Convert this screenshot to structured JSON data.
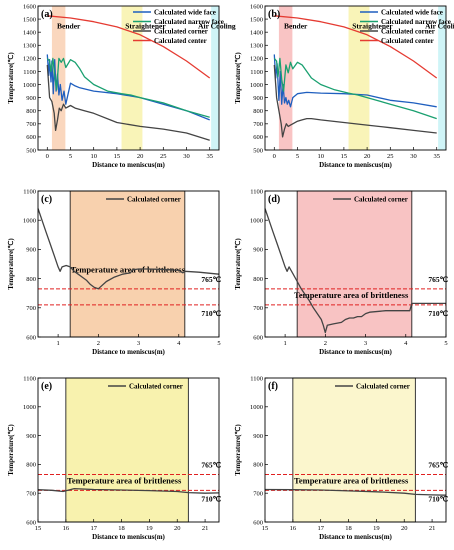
{
  "chart_data": [
    {
      "type": "line",
      "panel": "(a)",
      "xlabel": "Distance to meniscus(m)",
      "ylabel": "Temperature(℃)",
      "xlim": [
        -2,
        37
      ],
      "ylim": [
        500,
        1600
      ],
      "xticks": [
        0,
        5,
        10,
        15,
        20,
        25,
        30,
        35
      ],
      "yticks": [
        500,
        600,
        700,
        800,
        900,
        1000,
        1100,
        1200,
        1300,
        1400,
        1500,
        1600
      ],
      "regions": [
        {
          "label": "Bender",
          "x0": 1.0,
          "x1": 3.9,
          "color": "#f8c9a8",
          "labelx": 2.1,
          "labely": 1430
        },
        {
          "label": "Straightener",
          "x0": 16.0,
          "x1": 20.5,
          "color": "#f7f0a0",
          "labelx": 16.8,
          "labely": 1430
        },
        {
          "label": "Air Cooling",
          "x0": 35.3,
          "x1": 37.0,
          "color": "#bff0f4",
          "labelx": 32.5,
          "labely": 1430
        }
      ],
      "series": [
        {
          "name": "Calculated wide face",
          "color": "#1f5fbf",
          "x": [
            0,
            0.3,
            0.5,
            0.8,
            1,
            1.3,
            1.6,
            1.9,
            2.2,
            2.5,
            2.8,
            3.2,
            3.6,
            4,
            5,
            6,
            7,
            10,
            15,
            20,
            25,
            30,
            35
          ],
          "y": [
            1230,
            1070,
            1190,
            1020,
            1180,
            930,
            1190,
            950,
            1080,
            920,
            1000,
            880,
            950,
            850,
            1010,
            990,
            975,
            950,
            930,
            900,
            850,
            800,
            730
          ]
        },
        {
          "name": "Calculated narrow face",
          "color": "#1aa070",
          "x": [
            0,
            0.5,
            0.8,
            1.2,
            1.6,
            2,
            2.5,
            3,
            3.5,
            4,
            5,
            6,
            7,
            8,
            10,
            13,
            16,
            18,
            20,
            25,
            30,
            35
          ],
          "y": [
            1200,
            1180,
            1100,
            1200,
            1070,
            960,
            1200,
            1170,
            1200,
            1130,
            1190,
            1170,
            1120,
            1060,
            1000,
            950,
            930,
            920,
            900,
            860,
            800,
            750
          ]
        },
        {
          "name": "Calculated corner",
          "color": "#444444",
          "x": [
            0,
            0.5,
            1,
            1.5,
            1.8,
            2.2,
            2.6,
            3,
            3.5,
            4,
            5,
            6,
            8,
            10,
            15,
            20,
            25,
            30,
            35
          ],
          "y": [
            1150,
            900,
            870,
            780,
            650,
            730,
            820,
            800,
            850,
            820,
            840,
            820,
            800,
            780,
            710,
            680,
            660,
            630,
            575
          ]
        },
        {
          "name": "Calculated center",
          "color": "#e53b32",
          "x": [
            0,
            5,
            10,
            15,
            20,
            25,
            30,
            35
          ],
          "y": [
            1525,
            1508,
            1480,
            1440,
            1380,
            1290,
            1180,
            1050
          ]
        }
      ]
    },
    {
      "type": "line",
      "panel": "(b)",
      "xlabel": "Distance to meniscus(m)",
      "ylabel": "Temperature(℃)",
      "xlim": [
        -2,
        37
      ],
      "ylim": [
        500,
        1600
      ],
      "xticks": [
        0,
        5,
        10,
        15,
        20,
        25,
        30,
        35
      ],
      "yticks": [
        500,
        600,
        700,
        800,
        900,
        1000,
        1100,
        1200,
        1300,
        1400,
        1500,
        1600
      ],
      "regions": [
        {
          "label": "Bender",
          "x0": 1.0,
          "x1": 3.9,
          "color": "#f7b0b0",
          "labelx": 2.1,
          "labely": 1430
        },
        {
          "label": "Straightener",
          "x0": 16.0,
          "x1": 20.5,
          "color": "#f7f0a0",
          "labelx": 16.8,
          "labely": 1430
        },
        {
          "label": "Air Cooling",
          "x0": 35.3,
          "x1": 37.0,
          "color": "#bff0f4",
          "labelx": 32.5,
          "labely": 1430
        }
      ],
      "series": [
        {
          "name": "Calculated wide face",
          "color": "#1f5fbf",
          "x": [
            0,
            0.3,
            0.6,
            1,
            1.3,
            1.6,
            1.9,
            2.2,
            2.5,
            2.8,
            3.1,
            3.5,
            4,
            5,
            7,
            10,
            15,
            20,
            25,
            30,
            35
          ],
          "y": [
            1230,
            1050,
            1160,
            880,
            1100,
            850,
            1000,
            860,
            900,
            850,
            880,
            830,
            900,
            930,
            940,
            935,
            930,
            920,
            880,
            860,
            830
          ]
        },
        {
          "name": "Calculated narrow face",
          "color": "#1aa070",
          "x": [
            0,
            0.5,
            0.8,
            1.2,
            1.6,
            2,
            2.5,
            3,
            3.5,
            4,
            5,
            6,
            7,
            8,
            10,
            13,
            16,
            18,
            20,
            25,
            30,
            35
          ],
          "y": [
            1200,
            1180,
            1060,
            1200,
            1040,
            950,
            1150,
            1090,
            1170,
            1120,
            1170,
            1150,
            1100,
            1050,
            1000,
            960,
            935,
            920,
            900,
            850,
            800,
            740
          ]
        },
        {
          "name": "Calculated corner",
          "color": "#444444",
          "x": [
            0,
            0.5,
            1,
            1.5,
            1.8,
            2.2,
            2.6,
            3,
            3.5,
            4,
            5,
            6,
            7,
            8,
            10,
            15,
            20,
            25,
            30,
            35
          ],
          "y": [
            1150,
            900,
            800,
            700,
            600,
            660,
            700,
            680,
            690,
            700,
            720,
            730,
            740,
            740,
            730,
            710,
            690,
            670,
            650,
            630
          ]
        },
        {
          "name": "Calculated center",
          "color": "#e53b32",
          "x": [
            0,
            5,
            10,
            15,
            20,
            25,
            30,
            35
          ],
          "y": [
            1525,
            1508,
            1480,
            1440,
            1380,
            1290,
            1180,
            1050
          ]
        }
      ]
    },
    {
      "type": "line",
      "panel": "(c)",
      "xlabel": "Distance to meniscus(m)",
      "ylabel": "Temperature(℃)",
      "xlim": [
        0.5,
        5
      ],
      "ylim": [
        600,
        1100
      ],
      "xticks": [
        1,
        2,
        3,
        4,
        5
      ],
      "yticks": [
        600,
        700,
        800,
        900,
        1000,
        1100
      ],
      "regions": [
        {
          "label": "",
          "x0": 1.3,
          "x1": 4.15,
          "color": "#f7c9a0"
        }
      ],
      "thresholds": [
        765,
        710
      ],
      "threshold_labels": [
        "765℃",
        "710℃"
      ],
      "band_label": "Temperature area of brittleness",
      "series": [
        {
          "name": "Calculated corner",
          "color": "#444444",
          "x": [
            0.5,
            0.6,
            0.7,
            0.8,
            0.9,
            1.0,
            1.05,
            1.1,
            1.2,
            1.3,
            1.4,
            1.5,
            1.6,
            1.7,
            1.8,
            1.9,
            2.0,
            2.2,
            2.4,
            2.6,
            2.8,
            2.85,
            3.0,
            3.2,
            3.5,
            3.8,
            4.0,
            4.1,
            4.15,
            4.5,
            5.0
          ],
          "y": [
            1040,
            1000,
            960,
            920,
            880,
            840,
            825,
            840,
            845,
            840,
            825,
            815,
            805,
            795,
            780,
            770,
            765,
            790,
            805,
            815,
            820,
            830,
            833,
            833,
            832,
            830,
            828,
            820,
            825,
            822,
            815
          ]
        }
      ]
    },
    {
      "type": "line",
      "panel": "(d)",
      "xlabel": "Distance to meniscus(m)",
      "ylabel": "Temperature(℃)",
      "xlim": [
        0.5,
        5
      ],
      "ylim": [
        600,
        1100
      ],
      "xticks": [
        1,
        2,
        3,
        4,
        5
      ],
      "yticks": [
        600,
        700,
        800,
        900,
        1000,
        1100
      ],
      "regions": [
        {
          "label": "",
          "x0": 1.3,
          "x1": 4.15,
          "color": "#f7b8b8"
        }
      ],
      "thresholds": [
        765,
        710
      ],
      "threshold_labels": [
        "765℃",
        "710℃"
      ],
      "band_label": "Temperature area of brittleness",
      "series": [
        {
          "name": "Calculated corner",
          "color": "#444444",
          "x": [
            0.5,
            0.6,
            0.7,
            0.8,
            0.9,
            1.0,
            1.05,
            1.1,
            1.2,
            1.3,
            1.4,
            1.5,
            1.6,
            1.7,
            1.8,
            1.9,
            1.95,
            2.0,
            2.05,
            2.2,
            2.4,
            2.5,
            2.6,
            2.7,
            2.8,
            2.9,
            3.0,
            3.1,
            3.5,
            3.9,
            4.1,
            4.15,
            4.5,
            5.0
          ],
          "y": [
            1040,
            1000,
            960,
            920,
            880,
            840,
            825,
            840,
            815,
            790,
            765,
            745,
            725,
            700,
            680,
            660,
            640,
            615,
            640,
            645,
            650,
            660,
            665,
            665,
            670,
            670,
            680,
            685,
            690,
            690,
            690,
            715,
            715,
            715
          ]
        }
      ]
    },
    {
      "type": "line",
      "panel": "(e)",
      "xlabel": "Distance to meniscus(m)",
      "ylabel": "Temperature(℃)",
      "xlim": [
        15,
        21.5
      ],
      "ylim": [
        600,
        1100
      ],
      "xticks": [
        15,
        16,
        17,
        18,
        19,
        20,
        21
      ],
      "yticks": [
        600,
        700,
        800,
        900,
        1000,
        1100
      ],
      "regions": [
        {
          "label": "",
          "x0": 16.0,
          "x1": 20.4,
          "color": "#f7f0a0"
        }
      ],
      "thresholds": [
        765,
        710
      ],
      "threshold_labels": [
        "765℃",
        "710℃"
      ],
      "band_label": "Temperature area of brittleness",
      "series": [
        {
          "name": "Calculated corner",
          "color": "#444444",
          "x": [
            15,
            15.5,
            15.9,
            16.3,
            17,
            18,
            19,
            20,
            20.4,
            21,
            21.5
          ],
          "y": [
            712,
            710,
            706,
            716,
            713,
            711,
            709,
            706,
            702,
            700,
            701
          ]
        }
      ]
    },
    {
      "type": "line",
      "panel": "(f)",
      "xlabel": "Distance to meniscus(m)",
      "ylabel": "Temperature(℃)",
      "xlim": [
        15,
        21.5
      ],
      "ylim": [
        600,
        1100
      ],
      "xticks": [
        15,
        16,
        17,
        18,
        19,
        20,
        21
      ],
      "yticks": [
        600,
        700,
        800,
        900,
        1000,
        1100
      ],
      "regions": [
        {
          "label": "",
          "x0": 16.0,
          "x1": 20.4,
          "color": "#faf5c4"
        }
      ],
      "thresholds": [
        765,
        710
      ],
      "threshold_labels": [
        "765℃",
        "710℃"
      ],
      "band_label": "Temperature area of brittleness",
      "series": [
        {
          "name": "Calculated corner",
          "color": "#444444",
          "x": [
            15,
            16,
            17,
            18,
            19,
            20,
            20.4,
            21,
            21.5
          ],
          "y": [
            713,
            712,
            711,
            708,
            705,
            700,
            696,
            694,
            693
          ]
        }
      ]
    }
  ]
}
